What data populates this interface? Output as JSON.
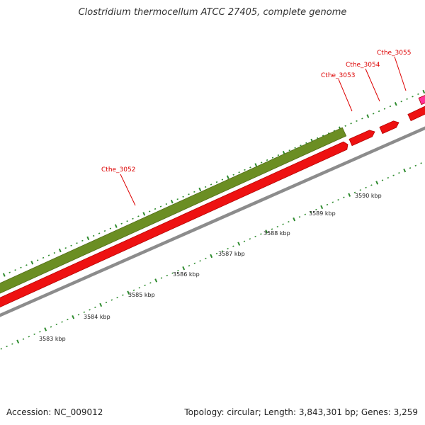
{
  "title": "Clostridium thermocellum ATCC 27405, complete genome",
  "colors": {
    "forward_gene": "#6b8e23",
    "forward_gene_edge": "#4f6b16",
    "reverse_gene": "#ee1111",
    "reverse_gene_edge": "#b30000",
    "highlight_gene": "#ff3399",
    "backbone": "#8c8c8c",
    "tick": "#2e8b2e",
    "gene_label": "#dd0000",
    "kbp_label": "#222222"
  },
  "genes": [
    {
      "name": "Cthe_3052",
      "strand": "forward",
      "color_key": "forward_gene"
    },
    {
      "name": "Cthe_3052",
      "strand": "reverse",
      "color_key": "reverse_gene"
    },
    {
      "name": "Cthe_3053",
      "strand": "reverse",
      "color_key": "reverse_gene"
    },
    {
      "name": "Cthe_3054",
      "strand": "reverse",
      "color_key": "reverse_gene"
    },
    {
      "name": "Cthe_3055",
      "strand": "reverse",
      "color_key": "reverse_gene"
    },
    {
      "name": "",
      "strand": "forward",
      "color_key": "highlight_gene"
    }
  ],
  "gene_labels": [
    "Cthe_3052",
    "Cthe_3053",
    "Cthe_3054",
    "Cthe_3055"
  ],
  "scale_labels": [
    "3583 kbp",
    "3584 kbp",
    "3585 kbp",
    "3586 kbp",
    "3587 kbp",
    "3588 kbp",
    "3589 kbp",
    "3590 kbp"
  ],
  "footer": {
    "accession": "Accession: NC_009012",
    "summary": "Topology: circular; Length: 3,843,301 bp; Genes: 3,259"
  }
}
